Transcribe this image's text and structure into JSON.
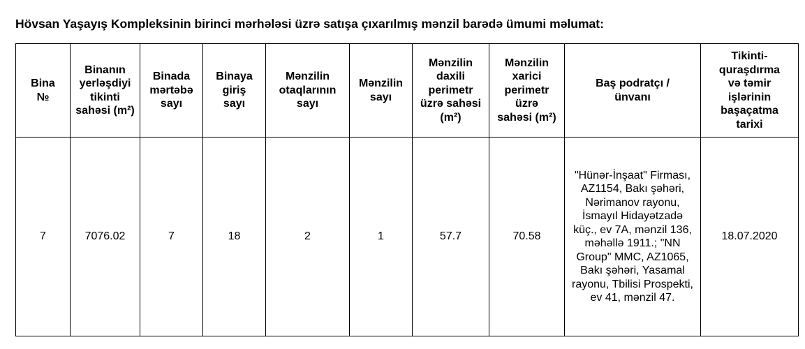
{
  "title": "Hövsan Yaşayış Kompleksinin birinci mərhələsi üzrə satışa çıxarılmış mənzil barədə ümumi məlumat:",
  "columns": [
    "Bina №",
    "Binanın yerləşdiyi tikinti sahəsi (m²)",
    "Binada mərtəbə sayı",
    "Binaya giriş sayı",
    "Mənzilin otaqlarının sayı",
    "Mənzilin sayı",
    "Mənzilin daxili perimetr üzrə sahəsi (m²)",
    "Mənzilin xarici perimetr üzrə sahəsi (m²)",
    "Baş podratçı / ünvanı",
    "Tikinti-quraşdırma və təmir işlərinin başaçatma tarixi"
  ],
  "rows": [
    [
      "7",
      "7076.02",
      "7",
      "18",
      "2",
      "1",
      "57.7",
      "70.58",
      "\"Hünər-İnşaat\" Firması, AZ1154, Bakı şəhəri, Nərimanov rayonu, İsmayıl Hidayətzadə küç., ev 7A, mənzil 136, məhəllə 1911.; \"NN Group\" MMC, AZ1065, Bakı şəhəri, Yasamal rayonu, Tbilisi Prospekti, ev 41, mənzil 47.",
      "18.07.2020"
    ]
  ]
}
